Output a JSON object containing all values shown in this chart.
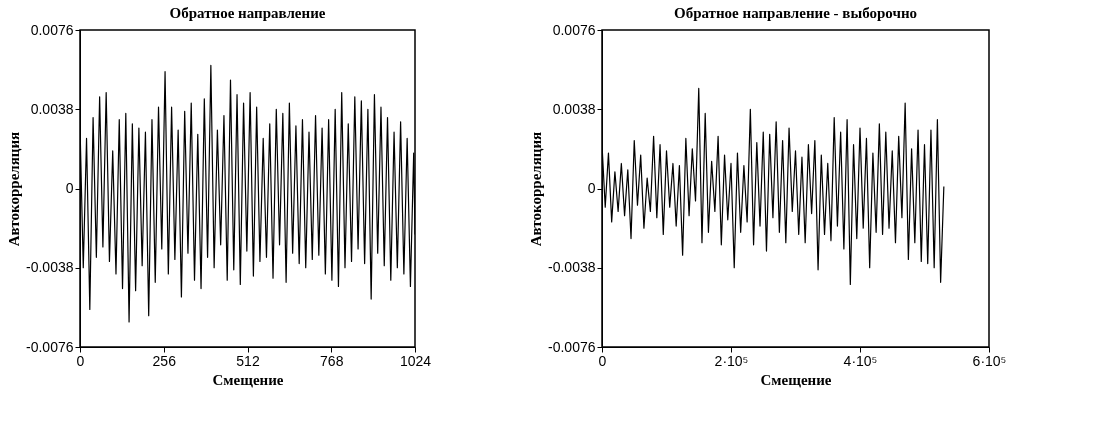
{
  "chart_data": [
    {
      "type": "line",
      "title": "Обратное направление",
      "xlabel": "Смещение",
      "ylabel": "Автокорреляция",
      "x": [
        0,
        10,
        20,
        30,
        40,
        50,
        60,
        70,
        80,
        90,
        100,
        110,
        120,
        130,
        140,
        150,
        160,
        170,
        180,
        190,
        200,
        210,
        220,
        230,
        240,
        250,
        260,
        270,
        280,
        290,
        300,
        310,
        320,
        330,
        340,
        350,
        360,
        370,
        380,
        390,
        400,
        410,
        420,
        430,
        440,
        450,
        460,
        470,
        480,
        490,
        500,
        510,
        520,
        530,
        540,
        550,
        560,
        570,
        580,
        590,
        600,
        610,
        620,
        630,
        640,
        650,
        660,
        670,
        680,
        690,
        700,
        710,
        720,
        730,
        740,
        750,
        760,
        770,
        780,
        790,
        800,
        810,
        820,
        830,
        840,
        850,
        860,
        870,
        880,
        890,
        900,
        910,
        920,
        930,
        940,
        950,
        960,
        970,
        980,
        990,
        1000,
        1010,
        1020,
        1024
      ],
      "series": [
        {
          "color": "#000000",
          "values": [
            0.003,
            -0.0038,
            0.0024,
            -0.0058,
            0.0034,
            -0.0033,
            0.0044,
            -0.0028,
            0.0046,
            -0.0035,
            0.0018,
            -0.0041,
            0.0033,
            -0.0048,
            0.0036,
            -0.0064,
            0.0031,
            -0.0049,
            0.0029,
            -0.0037,
            0.0027,
            -0.0061,
            0.0033,
            -0.0045,
            0.0039,
            -0.0029,
            0.0056,
            -0.0041,
            0.0039,
            -0.0034,
            0.0028,
            -0.0052,
            0.0037,
            -0.0031,
            0.0041,
            -0.0044,
            0.0026,
            -0.0048,
            0.0043,
            -0.0033,
            0.0059,
            -0.0038,
            0.0028,
            -0.0027,
            0.0035,
            -0.0044,
            0.0052,
            -0.0039,
            0.0045,
            -0.0046,
            0.0041,
            -0.003,
            0.0046,
            -0.0042,
            0.0039,
            -0.0035,
            0.0024,
            -0.0033,
            0.0031,
            -0.0043,
            0.0038,
            -0.0027,
            0.0036,
            -0.0045,
            0.0041,
            -0.0031,
            0.003,
            -0.0036,
            0.0033,
            -0.0038,
            0.0027,
            -0.0034,
            0.0035,
            -0.0032,
            0.0029,
            -0.0041,
            0.0033,
            -0.0044,
            0.0038,
            -0.0047,
            0.0046,
            -0.0038,
            0.0031,
            -0.0035,
            0.0044,
            -0.0029,
            0.0042,
            -0.0036,
            0.0038,
            -0.0053,
            0.0045,
            -0.0031,
            0.0039,
            -0.0037,
            0.0034,
            -0.0044,
            0.0027,
            -0.0038,
            0.0032,
            -0.0041,
            0.0024,
            -0.0047,
            0.0017,
            -0.0022
          ]
        }
      ],
      "xlim": [
        0,
        1024
      ],
      "xticks": [
        0,
        256,
        512,
        768,
        1024
      ],
      "ylim": [
        -0.0076,
        0.0076
      ],
      "yticks": [
        -0.0076,
        -0.0038,
        0,
        0.0038,
        0.0076
      ],
      "grid": false,
      "line_style": "solid",
      "marker": "none"
    },
    {
      "type": "line",
      "title": "Обратное направление - выборочно",
      "xlabel": "Смещение",
      "ylabel": "Автокорреляция",
      "x": [
        0,
        5000,
        10000,
        15000,
        20000,
        25000,
        30000,
        35000,
        40000,
        45000,
        50000,
        55000,
        60000,
        65000,
        70000,
        75000,
        80000,
        85000,
        90000,
        95000,
        100000,
        105000,
        110000,
        115000,
        120000,
        125000,
        130000,
        135000,
        140000,
        145000,
        150000,
        155000,
        160000,
        165000,
        170000,
        175000,
        180000,
        185000,
        190000,
        195000,
        200000,
        205000,
        210000,
        215000,
        220000,
        225000,
        230000,
        235000,
        240000,
        245000,
        250000,
        255000,
        260000,
        265000,
        270000,
        275000,
        280000,
        285000,
        290000,
        295000,
        300000,
        305000,
        310000,
        315000,
        320000,
        325000,
        330000,
        335000,
        340000,
        345000,
        350000,
        355000,
        360000,
        365000,
        370000,
        375000,
        380000,
        385000,
        390000,
        395000,
        400000,
        405000,
        410000,
        415000,
        420000,
        425000,
        430000,
        435000,
        440000,
        445000,
        450000,
        455000,
        460000,
        465000,
        470000,
        475000,
        480000,
        485000,
        490000,
        495000,
        500000,
        505000,
        510000,
        515000,
        520000,
        525000,
        530000
      ],
      "series": [
        {
          "color": "#000000",
          "values": [
            0.0021,
            -0.0009,
            0.0017,
            -0.0016,
            0.0008,
            -0.0011,
            0.0012,
            -0.0013,
            0.0009,
            -0.0024,
            0.0023,
            -0.0008,
            0.0016,
            -0.0019,
            0.0005,
            -0.0011,
            0.0025,
            -0.0014,
            0.0021,
            -0.0022,
            0.0018,
            -0.0009,
            0.0012,
            -0.0018,
            0.0011,
            -0.0032,
            0.0024,
            -0.0013,
            0.0019,
            -0.0006,
            0.0048,
            -0.0026,
            0.0036,
            -0.0021,
            0.0013,
            -0.0011,
            0.0025,
            -0.0027,
            0.0016,
            -0.0015,
            0.0012,
            -0.0038,
            0.0017,
            -0.0021,
            0.0011,
            -0.0016,
            0.0038,
            -0.0027,
            0.0022,
            -0.0018,
            0.0027,
            -0.003,
            0.0026,
            -0.0014,
            0.0032,
            -0.0021,
            0.0023,
            -0.0026,
            0.0029,
            -0.0011,
            0.0018,
            -0.0022,
            0.0015,
            -0.0026,
            0.0021,
            -0.0012,
            0.0023,
            -0.0039,
            0.0016,
            -0.0022,
            0.0012,
            -0.0025,
            0.0034,
            -0.0018,
            0.0027,
            -0.0029,
            0.0033,
            -0.0046,
            0.0021,
            -0.0024,
            0.0029,
            -0.0019,
            0.0024,
            -0.0038,
            0.0017,
            -0.0021,
            0.0031,
            -0.0022,
            0.0027,
            -0.0019,
            0.0018,
            -0.0026,
            0.0025,
            -0.0014,
            0.0041,
            -0.0034,
            0.0019,
            -0.0026,
            0.0028,
            -0.0035,
            0.0021,
            -0.0036,
            0.0028,
            -0.0038,
            0.0033,
            -0.0045,
            0.0001
          ]
        }
      ],
      "xlim": [
        0,
        600000
      ],
      "xticks": [
        0,
        {
          "value": 200000,
          "label": "2·10⁵"
        },
        {
          "value": 400000,
          "label": "4·10⁵"
        },
        {
          "value": 600000,
          "label": "6·10⁵"
        }
      ],
      "ylim": [
        -0.0076,
        0.0076
      ],
      "yticks": [
        -0.0076,
        -0.0038,
        0,
        0.0038,
        0.0076
      ],
      "grid": false,
      "line_style": "solid",
      "marker": "none"
    }
  ]
}
